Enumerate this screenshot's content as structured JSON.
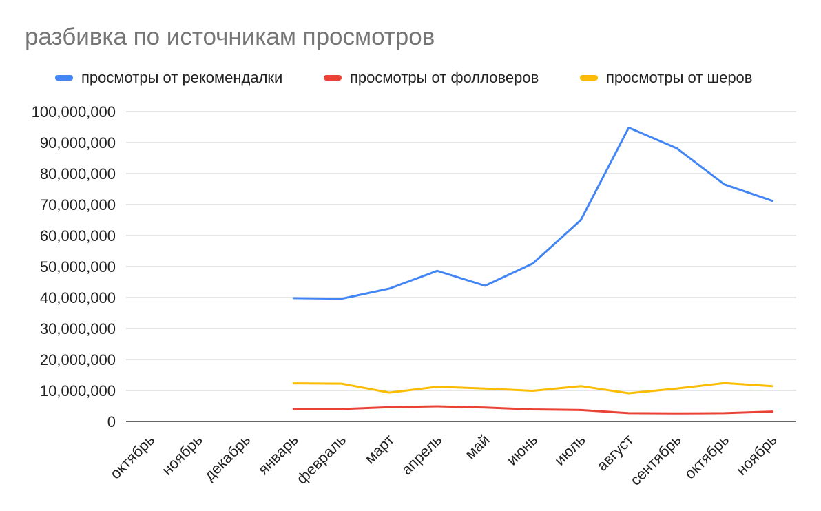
{
  "chart_data": {
    "type": "line",
    "title": "разбивка по источникам просмотров",
    "xlabel": "",
    "ylabel": "",
    "ylim": [
      0,
      100000000
    ],
    "y_ticks": [
      0,
      10000000,
      20000000,
      30000000,
      40000000,
      50000000,
      60000000,
      70000000,
      80000000,
      90000000,
      100000000
    ],
    "y_tick_labels": [
      "0",
      "10,000,000",
      "20,000,000",
      "30,000,000",
      "40,000,000",
      "50,000,000",
      "60,000,000",
      "70,000,000",
      "80,000,000",
      "90,000,000",
      "100,000,000"
    ],
    "categories": [
      "октябрь",
      "ноябрь",
      "декабрь",
      "январь",
      "февраль",
      "март",
      "апрель",
      "май",
      "июнь",
      "июль",
      "август",
      "сентябрь",
      "октябрь",
      "ноябрь"
    ],
    "grid": true,
    "legend_position": "top",
    "series": [
      {
        "name": "просмотры от рекомендалки",
        "color": "#4285f4",
        "values": [
          null,
          null,
          null,
          39800000,
          39600000,
          42900000,
          48600000,
          43800000,
          51000000,
          65000000,
          94800000,
          88200000,
          76500000,
          71200000
        ]
      },
      {
        "name": "просмотры от фолловеров",
        "color": "#ea4335",
        "values": [
          null,
          null,
          null,
          4000000,
          4000000,
          4600000,
          4900000,
          4500000,
          3900000,
          3700000,
          2700000,
          2600000,
          2700000,
          3200000
        ]
      },
      {
        "name": "просмотры от шеров",
        "color": "#fbbc04",
        "values": [
          null,
          null,
          null,
          12300000,
          12200000,
          9300000,
          11200000,
          10600000,
          9900000,
          11400000,
          9100000,
          10600000,
          12400000,
          11400000
        ]
      }
    ]
  }
}
